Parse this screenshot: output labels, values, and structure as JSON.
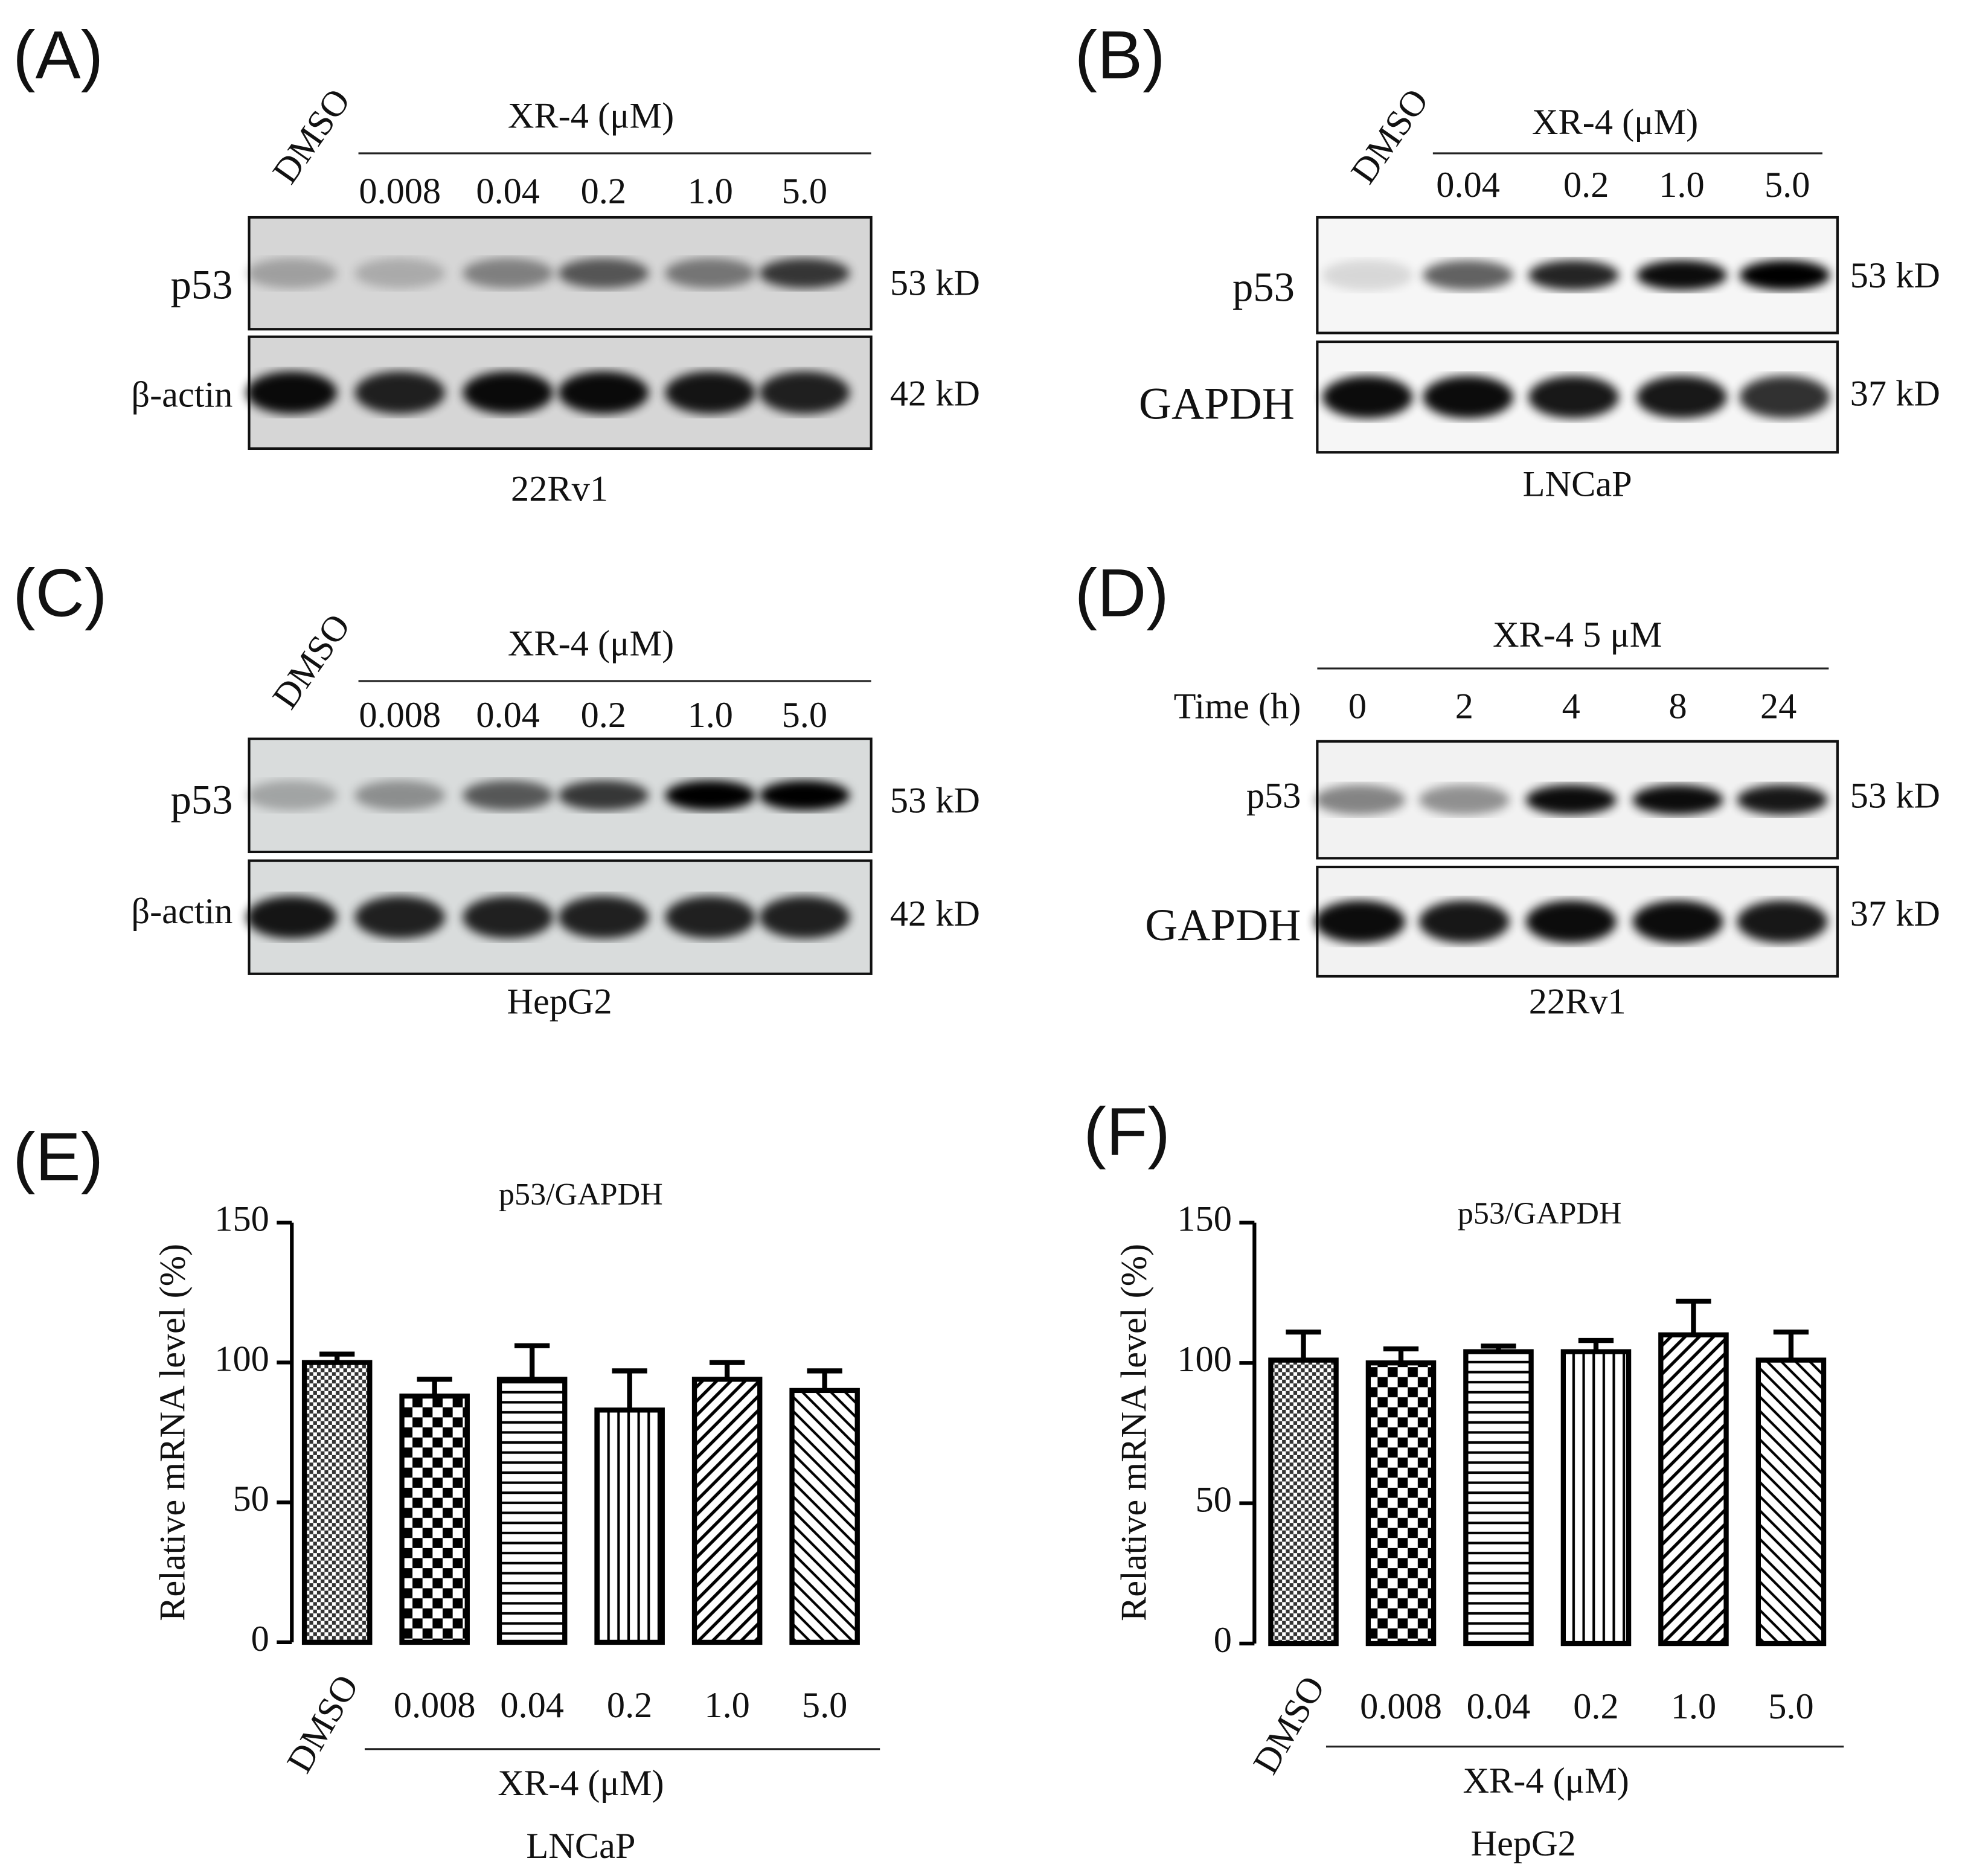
{
  "blots": [
    {
      "panel": "(A)",
      "control": "DMSO",
      "header": "XR-4 (μM)",
      "lanes": [
        "0.008",
        "0.04",
        "0.2",
        "1.0",
        "5.0"
      ],
      "rows": [
        {
          "name": "p53",
          "size": "53 kD"
        },
        {
          "name": "β-actin",
          "size": "42 kD"
        }
      ],
      "cell": "22Rv1"
    },
    {
      "panel": "(B)",
      "control": "DMSO",
      "header": "XR-4 (μM)",
      "lanes": [
        "0.04",
        "0.2",
        "1.0",
        "5.0"
      ],
      "rows": [
        {
          "name": "p53",
          "size": "53 kD"
        },
        {
          "name": "GAPDH",
          "size": "37 kD"
        }
      ],
      "cell": "LNCaP"
    },
    {
      "panel": "(C)",
      "control": "DMSO",
      "header": "XR-4 (μM)",
      "lanes": [
        "0.008",
        "0.04",
        "0.2",
        "1.0",
        "5.0"
      ],
      "rows": [
        {
          "name": "p53",
          "size": "53 kD"
        },
        {
          "name": "β-actin",
          "size": "42 kD"
        }
      ],
      "cell": "HepG2"
    },
    {
      "panel": "(D)",
      "lane_title": "Time (h)",
      "header": "XR-4 5 μM",
      "lanes": [
        "0",
        "2",
        "4",
        "8",
        "24"
      ],
      "rows": [
        {
          "name": "p53",
          "size": "53 kD"
        },
        {
          "name": "GAPDH",
          "size": "37 kD"
        }
      ],
      "cell": "22Rv1"
    }
  ],
  "chart_data": [
    {
      "type": "bar",
      "panel": "(E)",
      "title": "p53/GAPDH",
      "y_label": "Relative mRNA level (%)",
      "categories": [
        "DMSO",
        "0.008",
        "0.04",
        "0.2",
        "1.0",
        "5.0"
      ],
      "values": [
        100,
        88,
        94,
        83,
        94,
        90
      ],
      "errors": [
        3,
        6,
        12,
        14,
        6,
        7
      ],
      "ylim": [
        0,
        150
      ],
      "yticks": [
        0,
        50,
        100,
        150
      ],
      "grid": false,
      "group_label": "XR-4 (μM)",
      "caption": "LNCaP"
    },
    {
      "type": "bar",
      "panel": "(F)",
      "title": "p53/GAPDH",
      "y_label": "Relative mRNA level (%)",
      "categories": [
        "DMSO",
        "0.008",
        "0.04",
        "0.2",
        "1.0",
        "5.0"
      ],
      "values": [
        101,
        100,
        104,
        104,
        110,
        101
      ],
      "errors": [
        10,
        5,
        2,
        4,
        12,
        10
      ],
      "ylim": [
        0,
        150
      ],
      "yticks": [
        0,
        50,
        100,
        150
      ],
      "grid": false,
      "group_label": "XR-4 (μM)",
      "caption": "HepG2"
    }
  ]
}
